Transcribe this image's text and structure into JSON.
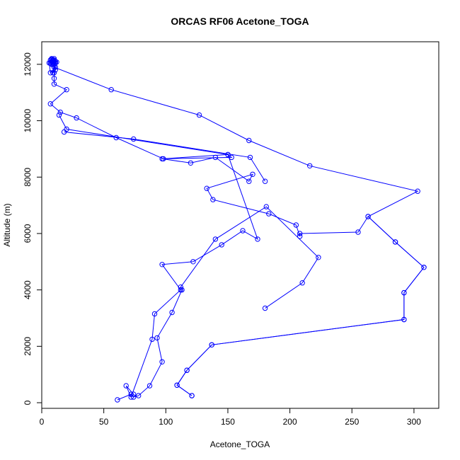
{
  "chart_data": {
    "type": "line",
    "title": "ORCAS RF06 Acetone_TOGA",
    "xlabel": "Acetone_TOGA",
    "ylabel": "Altitude (m)",
    "xlim": [
      0,
      320
    ],
    "ylim": [
      -200,
      12800
    ],
    "xticks": [
      0,
      50,
      100,
      150,
      200,
      250,
      300
    ],
    "yticks": [
      0,
      2000,
      4000,
      6000,
      8000,
      10000,
      12000
    ],
    "grid": false,
    "color": "#0000FF",
    "markers": "open-circle",
    "series": [
      {
        "x": [
          11,
          7,
          9,
          8,
          10,
          8,
          12,
          9,
          7,
          10,
          8,
          11,
          9,
          10,
          7,
          9,
          8,
          10,
          9,
          8,
          10,
          11,
          9,
          10,
          56,
          127,
          167,
          216,
          303,
          263,
          285,
          308,
          292,
          292,
          137,
          117,
          109,
          121
        ],
        "y": [
          12100,
          12050,
          12150,
          12000,
          12100,
          12200,
          12080,
          12050,
          12150,
          12000,
          12180,
          12050,
          12100,
          12150,
          12050,
          12000,
          12100,
          12200,
          12050,
          12100,
          12150,
          11800,
          11700,
          11900,
          11100,
          10200,
          9300,
          8400,
          7500,
          6600,
          5700,
          4800,
          3900,
          2950,
          2050,
          1150,
          620,
          250
        ]
      },
      {
        "x": [
          121,
          109,
          117,
          137,
          292,
          292,
          308,
          285,
          263,
          255,
          208,
          208,
          205,
          183,
          138,
          133,
          170,
          167,
          140,
          120,
          97,
          150,
          153,
          98,
          60,
          28,
          15,
          7,
          20,
          10,
          10,
          10,
          11,
          7,
          6,
          8,
          10
        ],
        "y": [
          250,
          620,
          1150,
          2050,
          2950,
          3900,
          4800,
          5700,
          6600,
          6050,
          6000,
          5900,
          6300,
          6700,
          7200,
          7600,
          8100,
          7850,
          8700,
          8500,
          8650,
          8800,
          8700,
          8650,
          9400,
          10100,
          10300,
          10600,
          11100,
          11300,
          11500,
          11700,
          11900,
          11700,
          12050,
          12150,
          12100
        ]
      },
      {
        "x": [
          61,
          72,
          74,
          78,
          87,
          97,
          93,
          105,
          113,
          112,
          140,
          181,
          223,
          210,
          180
        ],
        "y": [
          100,
          300,
          200,
          250,
          600,
          1450,
          2300,
          3200,
          4000,
          4100,
          5800,
          6950,
          5150,
          4250,
          3350
        ]
      },
      {
        "x": [
          74,
          68,
          72,
          89,
          91,
          112,
          97,
          122,
          145,
          162,
          174,
          150,
          20,
          14
        ],
        "y": [
          300,
          600,
          200,
          2250,
          3150,
          4000,
          4900,
          5000,
          5600,
          6100,
          5800,
          8800,
          9700,
          10200
        ]
      },
      {
        "x": [
          18,
          74,
          168,
          180
        ],
        "y": [
          9600,
          9350,
          8700,
          7850
        ]
      }
    ]
  }
}
